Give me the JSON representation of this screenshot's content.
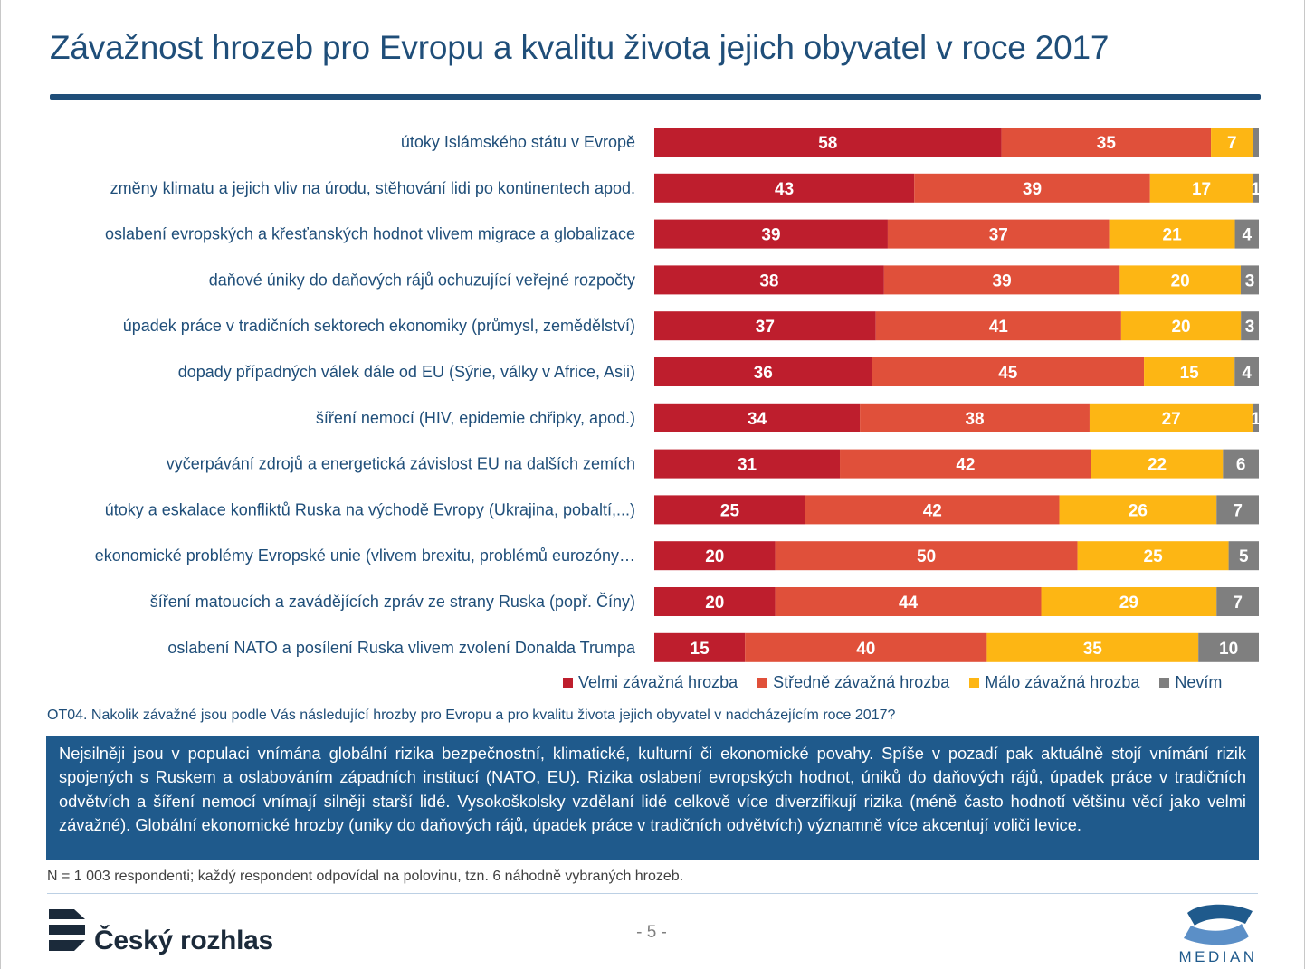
{
  "title": "Závažnost hrozeb pro Evropu a kvalitu života jejich obyvatel v roce 2017",
  "chart_data": {
    "type": "bar",
    "orientation": "horizontal",
    "stacked": true,
    "value_unit": "%",
    "categories": [
      "útoky Islámského státu v Evropě",
      "změny klimatu a jejich vliv na úrodu, stěhování lidi po kontinentech apod.",
      "oslabení evropských a křesťanských hodnot vlivem migrace a globalizace",
      "daňové úniky do daňových rájů ochuzující veřejné rozpočty",
      "úpadek práce v tradičních sektorech ekonomiky (průmysl, zemědělství)",
      "dopady případných válek dále od EU (Sýrie, války v Africe, Asii)",
      "šíření nemocí (HIV, epidemie chřipky, apod.)",
      "vyčerpávání zdrojů a energetická závislost EU na dalších zemích",
      "útoky a eskalace konfliktů Ruska na východě Evropy (Ukrajina, pobaltí,...)",
      "ekonomické problémy Evropské unie (vlivem brexitu, problémů eurozóny…",
      "šíření matoucích a zavádějících zpráv ze strany Ruska (popř. Číny)",
      "oslabení NATO a posílení Ruska vlivem zvolení Donalda Trumpa"
    ],
    "series": [
      {
        "name": "Velmi závažná hrozba",
        "color": "#be1e2d",
        "values": [
          58,
          43,
          39,
          38,
          37,
          36,
          34,
          31,
          25,
          20,
          20,
          15
        ]
      },
      {
        "name": "Středně závažná hrozba",
        "color": "#e0503a",
        "values": [
          35,
          39,
          37,
          39,
          41,
          45,
          38,
          42,
          42,
          50,
          44,
          40
        ]
      },
      {
        "name": "Málo závažná hrozba",
        "color": "#fdb614",
        "values": [
          7,
          17,
          21,
          20,
          20,
          15,
          27,
          22,
          26,
          25,
          29,
          35
        ]
      },
      {
        "name": "Nevím",
        "color": "#7f7f7f",
        "values": [
          1,
          1,
          4,
          3,
          3,
          4,
          1,
          6,
          7,
          5,
          7,
          10
        ]
      }
    ],
    "data_labels": [
      [
        "58",
        "43",
        "39",
        "38",
        "37",
        "36",
        "34",
        "31",
        "25",
        "20",
        "20",
        "15"
      ],
      [
        "35",
        "39",
        "37",
        "39",
        "41",
        "45",
        "38",
        "42",
        "42",
        "50",
        "44",
        "40"
      ],
      [
        "7",
        "17",
        "21",
        "20",
        "20",
        "15",
        "27",
        "22",
        "26",
        "25",
        "29",
        "35"
      ],
      [
        "",
        "1",
        "4",
        "3",
        "3",
        "4",
        "1",
        "6",
        "7",
        "5",
        "7",
        "10"
      ]
    ],
    "legend_position": "bottom-right",
    "grid": false
  },
  "question": "OT04. Nakolik závažné jsou podle Vás následující hrozby pro Evropu a pro kvalitu života jejich obyvatel v nadcházejícím roce 2017?",
  "summary": "Nejsilněji jsou v populaci vnímána globální rizika bezpečnostní, klimatické, kulturní či ekonomické povahy. Spíše v pozadí pak aktuálně stojí vnímání rizik spojených s Ruskem a oslabováním západních institucí (NATO, EU). Rizika oslabení evropských hodnot, úniků do daňových rájů, úpadek práce v tradičních odvětvích a šíření nemocí vnímají silněji starší lidé. Vysokoškolsky vzdělaní lidé celkově více diverzifikují rizika (méně často hodnotí většinu věcí jako velmi závažné). Globální ekonomické hrozby (uniky do daňových rájů, úpadek práce v tradičních odvětvích) významně více akcentují voliči levice.",
  "footnote": "N = 1 003 respondenti; každý respondent odpovídal na polovinu, tzn. 6 náhodně vybraných hrozeb.",
  "footer": {
    "left_logo_text": "Český rozhlas",
    "page_number": "- 5 -",
    "right_logo_text": "MEDIAN"
  }
}
